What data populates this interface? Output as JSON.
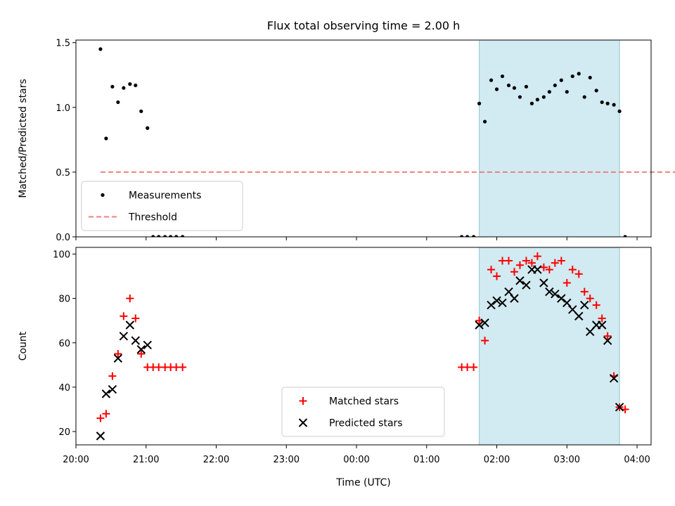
{
  "chart_data": {
    "title": "Flux total observing time = 2.00 h",
    "xlabel": "Time (UTC)",
    "x_unit": "hours",
    "xlim": [
      20.0,
      28.2
    ],
    "x_ticks": [
      {
        "value": 20,
        "label": "20:00"
      },
      {
        "value": 21,
        "label": "21:00"
      },
      {
        "value": 22,
        "label": "22:00"
      },
      {
        "value": 23,
        "label": "23:00"
      },
      {
        "value": 24,
        "label": "00:00"
      },
      {
        "value": 25,
        "label": "01:00"
      },
      {
        "value": 26,
        "label": "02:00"
      },
      {
        "value": 27,
        "label": "03:00"
      },
      {
        "value": 28,
        "label": "04:00"
      }
    ],
    "observing_window": {
      "start": 25.75,
      "end": 27.75,
      "color": "#add8e6"
    },
    "panels": [
      {
        "type": "scatter",
        "ylabel": "Matched/Predicted stars",
        "ylim": [
          0,
          1.52
        ],
        "y_ticks": [
          {
            "value": 0,
            "label": "0.0"
          },
          {
            "value": 0.5,
            "label": "0.5"
          },
          {
            "value": 1.0,
            "label": "1.0"
          },
          {
            "value": 1.5,
            "label": "1.5"
          }
        ],
        "legend_position": "lower-left",
        "threshold": {
          "name": "Threshold",
          "value": 0.5,
          "x_range": [
            20.35,
            28.83
          ],
          "color": "#f08080"
        },
        "series": [
          {
            "name": "Measurements",
            "marker": "dot",
            "color": "#000000",
            "x": [
              20.35,
              20.43,
              20.52,
              20.6,
              20.68,
              20.77,
              20.85,
              20.93,
              21.02,
              21.1,
              21.18,
              21.27,
              21.35,
              21.43,
              21.52,
              25.5,
              25.58,
              25.67,
              25.75,
              25.83,
              25.92,
              26.0,
              26.08,
              26.17,
              26.25,
              26.33,
              26.42,
              26.5,
              26.58,
              26.67,
              26.75,
              26.83,
              26.92,
              27.0,
              27.08,
              27.17,
              27.25,
              27.33,
              27.42,
              27.5,
              27.58,
              27.67,
              27.75,
              27.83
            ],
            "y": [
              1.45,
              0.76,
              1.16,
              1.04,
              1.15,
              1.18,
              1.17,
              0.97,
              0.84,
              0,
              0,
              0,
              0,
              0,
              0,
              0,
              0,
              0,
              1.03,
              0.89,
              1.21,
              1.14,
              1.24,
              1.17,
              1.15,
              1.08,
              1.16,
              1.03,
              1.06,
              1.08,
              1.12,
              1.17,
              1.21,
              1.12,
              1.24,
              1.26,
              1.08,
              1.23,
              1.13,
              1.04,
              1.03,
              1.02,
              0.97,
              0
            ]
          }
        ]
      },
      {
        "type": "scatter",
        "ylabel": "Count",
        "ylim": [
          14,
          103
        ],
        "y_ticks": [
          {
            "value": 20,
            "label": "20"
          },
          {
            "value": 40,
            "label": "40"
          },
          {
            "value": 60,
            "label": "60"
          },
          {
            "value": 80,
            "label": "80"
          },
          {
            "value": 100,
            "label": "100"
          }
        ],
        "legend_position": "lower-center",
        "series": [
          {
            "name": "Matched stars",
            "marker": "plus",
            "color": "#ff0000",
            "x": [
              20.35,
              20.43,
              20.52,
              20.6,
              20.68,
              20.77,
              20.85,
              20.93,
              21.02,
              21.1,
              21.18,
              21.27,
              21.35,
              21.43,
              21.52,
              25.5,
              25.58,
              25.67,
              25.75,
              25.83,
              25.92,
              26.0,
              26.08,
              26.17,
              26.25,
              26.33,
              26.42,
              26.5,
              26.58,
              26.67,
              26.75,
              26.83,
              26.92,
              27.0,
              27.08,
              27.17,
              27.25,
              27.33,
              27.42,
              27.5,
              27.58,
              27.67,
              27.75,
              27.83
            ],
            "y": [
              26,
              28,
              45,
              55,
              72,
              80,
              71,
              55,
              49,
              49,
              49,
              49,
              49,
              49,
              49,
              49,
              49,
              49,
              70,
              61,
              93,
              90,
              97,
              97,
              92,
              95,
              97,
              96,
              99,
              94,
              93,
              96,
              97,
              87,
              93,
              91,
              83,
              80,
              77,
              71,
              63,
              45,
              31,
              30
            ]
          },
          {
            "name": "Predicted stars",
            "marker": "x",
            "color": "#000000",
            "x": [
              20.35,
              20.43,
              20.52,
              20.6,
              20.68,
              20.77,
              20.85,
              20.93,
              21.02,
              25.75,
              25.83,
              25.92,
              26.0,
              26.08,
              26.17,
              26.25,
              26.33,
              26.42,
              26.5,
              26.58,
              26.67,
              26.75,
              26.83,
              26.92,
              27.0,
              27.08,
              27.17,
              27.25,
              27.33,
              27.42,
              27.5,
              27.58,
              27.67,
              27.75
            ],
            "y": [
              18,
              37,
              39,
              53,
              63,
              68,
              61,
              57,
              59,
              68,
              69,
              77,
              79,
              78,
              83,
              80,
              88,
              86,
              93,
              93,
              87,
              83,
              82,
              80,
              78,
              75,
              72,
              77,
              65,
              68,
              68,
              61,
              44,
              31
            ]
          }
        ]
      }
    ]
  }
}
